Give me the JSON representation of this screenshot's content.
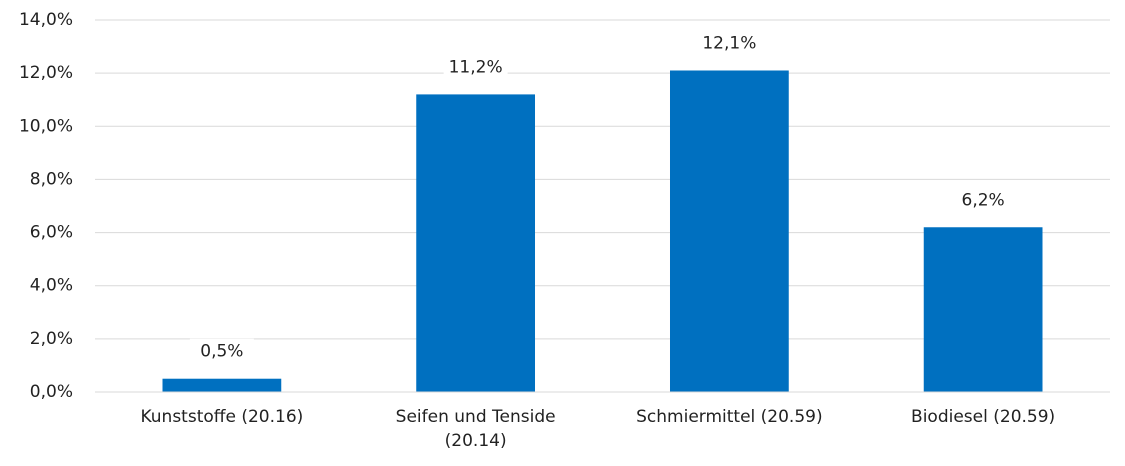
{
  "chart_data": {
    "type": "bar",
    "categories": [
      "Kunststoffe (20.16)",
      "Seifen und Tenside\n(20.14)",
      "Schmiermittel (20.59)",
      "Biodiesel (20.59)"
    ],
    "values": [
      0.5,
      11.2,
      12.1,
      6.2
    ],
    "value_labels": [
      "0,5%",
      "11,2%",
      "12,1%",
      "6,2%"
    ],
    "color": "#0070c0",
    "ylim": [
      0,
      14
    ],
    "yticks": [
      {
        "value": 0,
        "label": "0,0%"
      },
      {
        "value": 2,
        "label": "2,0%"
      },
      {
        "value": 4,
        "label": "4,0%"
      },
      {
        "value": 6,
        "label": "6,0%"
      },
      {
        "value": 8,
        "label": "8,0%"
      },
      {
        "value": 10,
        "label": "10,0%"
      },
      {
        "value": 12,
        "label": "12,0%"
      },
      {
        "value": 14,
        "label": "14,0%"
      }
    ],
    "grid": true
  }
}
